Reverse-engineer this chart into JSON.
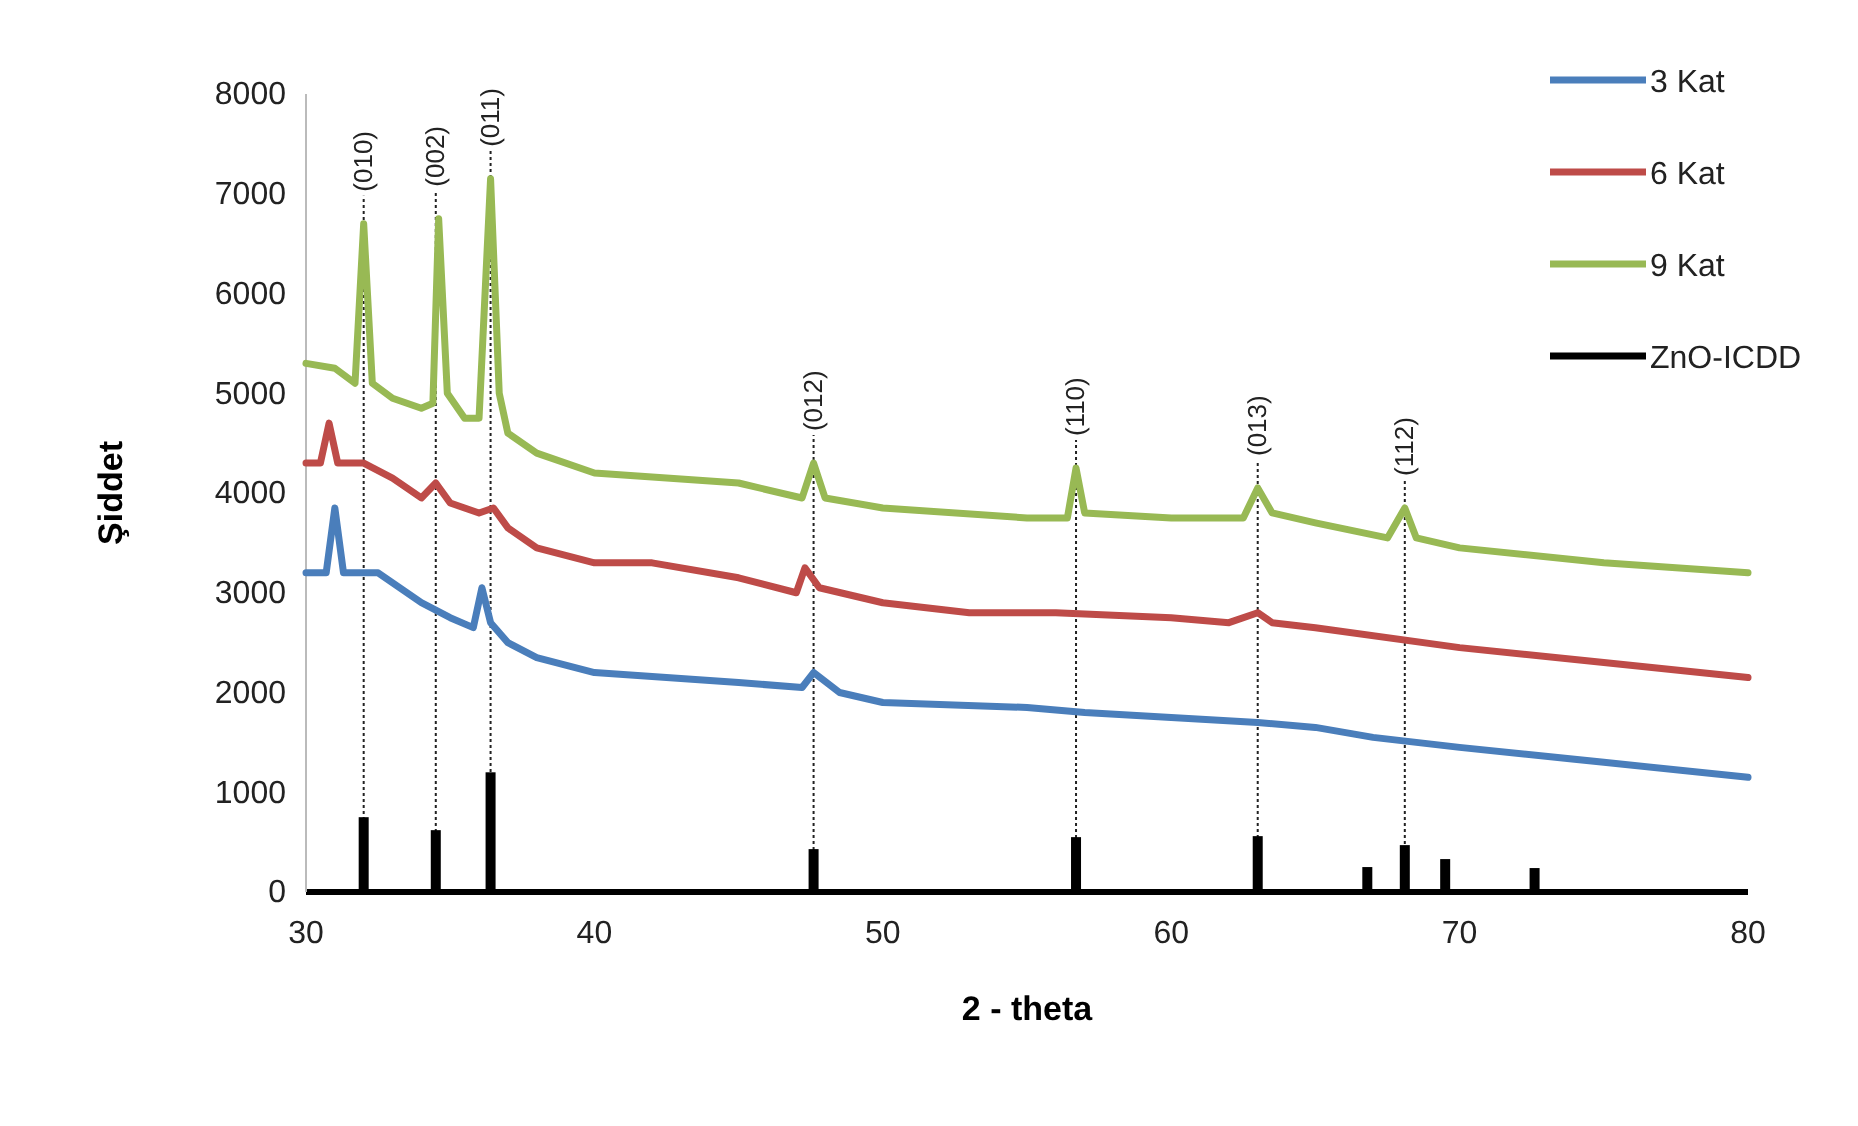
{
  "chart_data": {
    "type": "line",
    "xlabel": "2 - theta",
    "ylabel": "Şiddet",
    "xlim": [
      30,
      80
    ],
    "xticks": [
      30,
      40,
      50,
      60,
      70,
      80
    ],
    "ylim": [
      0,
      8000
    ],
    "yticks": [
      0,
      1000,
      2000,
      3000,
      4000,
      5000,
      6000,
      7000,
      8000
    ],
    "legend": "top right",
    "grid": false,
    "marker": "none",
    "line_style": "solid",
    "series": [
      {
        "name": "3 Kat",
        "color": "#4a7ebb",
        "x": [
          30,
          30.7,
          31,
          31.3,
          32.5,
          34,
          35,
          35.8,
          36.1,
          36.4,
          37,
          38,
          40,
          45,
          47.2,
          47.6,
          48.5,
          50,
          55,
          57,
          60,
          63,
          65,
          67,
          70,
          75,
          80
        ],
        "values": [
          3200,
          3200,
          3850,
          3200,
          3200,
          2900,
          2750,
          2650,
          3050,
          2700,
          2500,
          2350,
          2200,
          2100,
          2050,
          2200,
          2000,
          1900,
          1850,
          1800,
          1750,
          1700,
          1650,
          1550,
          1450,
          1300,
          1150
        ]
      },
      {
        "name": "6 Kat",
        "color": "#be4b48",
        "x": [
          30,
          30.5,
          30.8,
          31.1,
          32,
          33,
          34,
          34.5,
          35,
          36,
          36.5,
          37,
          38,
          40,
          42,
          45,
          47,
          47.3,
          47.8,
          50,
          53,
          56,
          60,
          62,
          63,
          63.5,
          65,
          70,
          75,
          80
        ],
        "values": [
          4300,
          4300,
          4700,
          4300,
          4300,
          4150,
          3950,
          4100,
          3900,
          3800,
          3850,
          3650,
          3450,
          3300,
          3300,
          3150,
          3000,
          3250,
          3050,
          2900,
          2800,
          2800,
          2750,
          2700,
          2800,
          2700,
          2650,
          2450,
          2300,
          2150
        ]
      },
      {
        "name": "9 Kat",
        "color": "#98b954",
        "x": [
          30,
          31,
          31.7,
          32,
          32.3,
          33,
          34,
          34.4,
          34.6,
          34.9,
          35.5,
          36,
          36.4,
          36.7,
          37,
          38,
          40,
          45,
          47.2,
          47.6,
          48,
          50,
          55,
          56.4,
          56.7,
          57,
          60,
          62.5,
          63,
          63.5,
          65,
          67.5,
          68.1,
          68.5,
          70,
          75,
          80
        ],
        "values": [
          5300,
          5250,
          5100,
          6700,
          5100,
          4950,
          4850,
          4900,
          6750,
          5000,
          4750,
          4750,
          7150,
          5000,
          4600,
          4400,
          4200,
          4100,
          3950,
          4300,
          3950,
          3850,
          3750,
          3750,
          4250,
          3800,
          3750,
          3750,
          4050,
          3800,
          3700,
          3550,
          3850,
          3550,
          3450,
          3300,
          3200
        ]
      },
      {
        "name": "ZnO-ICDD",
        "type": "bar",
        "color": "#000000",
        "x": [
          32,
          34.5,
          36.4,
          47.6,
          56.7,
          63,
          66.8,
          68.1,
          69.5,
          72.6
        ],
        "values": [
          750,
          620,
          1200,
          430,
          550,
          560,
          250,
          470,
          330,
          240
        ]
      }
    ],
    "annotations": [
      {
        "text": "(010)",
        "x": 32,
        "y": 6700
      },
      {
        "text": "(002)",
        "x": 34.5,
        "y": 6750
      },
      {
        "text": "(011)",
        "x": 36.4,
        "y": 7150
      },
      {
        "text": "(012)",
        "x": 47.6,
        "y": 4300
      },
      {
        "text": "(110)",
        "x": 56.7,
        "y": 4250
      },
      {
        "text": "(013)",
        "x": 63,
        "y": 4050
      },
      {
        "text": "(112)",
        "x": 68.1,
        "y": 3850
      }
    ]
  }
}
